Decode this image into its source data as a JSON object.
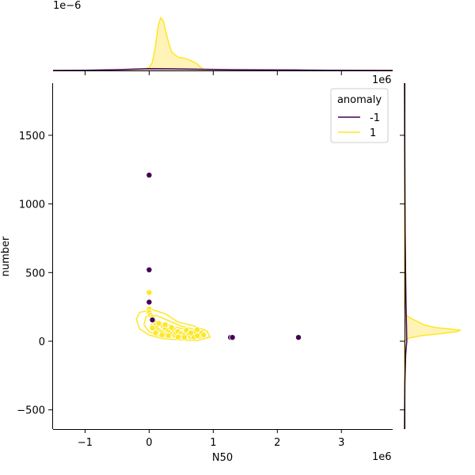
{
  "colors": {
    "anomaly_neg": "#440154",
    "anomaly_pos": "#fde725",
    "anomaly_pos_fill": "#fff3b8"
  },
  "chart_data": {
    "type": "scatter",
    "xlabel": "N50",
    "ylabel": "number",
    "x_offset_label": "1e6",
    "top_offset_label": "1e−6",
    "right_offset_label": "1e6",
    "xlim": [
      -1.5,
      3.8
    ],
    "ylim": [
      -640,
      1880
    ],
    "x_ticks": [
      {
        "value": -1,
        "label": "−1"
      },
      {
        "value": 0,
        "label": "0"
      },
      {
        "value": 1,
        "label": "1"
      },
      {
        "value": 2,
        "label": "2"
      },
      {
        "value": 3,
        "label": "3"
      }
    ],
    "y_ticks": [
      {
        "value": -500,
        "label": "−500"
      },
      {
        "value": 0,
        "label": "0"
      },
      {
        "value": 500,
        "label": "500"
      },
      {
        "value": 1000,
        "label": "1000"
      },
      {
        "value": 1500,
        "label": "1500"
      }
    ],
    "legend": {
      "title": "anomaly",
      "placement": "top-right",
      "entries": [
        {
          "label": "-1",
          "color": "#440154"
        },
        {
          "label": "1",
          "color": "#fde725"
        }
      ]
    },
    "series": [
      {
        "name": "-1",
        "color": "#440154",
        "points": [
          [
            0.0,
            1210
          ],
          [
            0.0,
            520
          ],
          [
            0.0,
            285
          ],
          [
            0.05,
            155
          ],
          [
            1.27,
            28
          ],
          [
            1.3,
            28
          ],
          [
            2.33,
            28
          ]
        ]
      },
      {
        "name": "1",
        "color": "#fde725",
        "points": [
          [
            0.0,
            355
          ],
          [
            0.0,
            235
          ],
          [
            0.0,
            210
          ],
          [
            0.02,
            190
          ],
          [
            0.05,
            175
          ],
          [
            0.08,
            140
          ],
          [
            0.1,
            115
          ],
          [
            0.12,
            95
          ],
          [
            0.15,
            80
          ],
          [
            0.18,
            70
          ],
          [
            0.2,
            60
          ],
          [
            0.22,
            110
          ],
          [
            0.25,
            95
          ],
          [
            0.28,
            55
          ],
          [
            0.3,
            75
          ],
          [
            0.33,
            65
          ],
          [
            0.35,
            50
          ],
          [
            0.38,
            85
          ],
          [
            0.4,
            45
          ],
          [
            0.42,
            60
          ],
          [
            0.45,
            70
          ],
          [
            0.48,
            40
          ],
          [
            0.5,
            55
          ],
          [
            0.52,
            35
          ],
          [
            0.55,
            45
          ],
          [
            0.58,
            80
          ],
          [
            0.6,
            38
          ],
          [
            0.62,
            50
          ],
          [
            0.65,
            32
          ],
          [
            0.68,
            42
          ],
          [
            0.7,
            30
          ],
          [
            0.72,
            70
          ],
          [
            0.75,
            85
          ],
          [
            0.78,
            35
          ],
          [
            0.8,
            50
          ],
          [
            0.82,
            60
          ],
          [
            0.85,
            45
          ],
          [
            0.15,
            130
          ],
          [
            0.25,
            120
          ],
          [
            0.1,
            60
          ],
          [
            0.3,
            40
          ],
          [
            0.45,
            30
          ],
          [
            0.55,
            28
          ],
          [
            0.05,
            95
          ],
          [
            0.35,
            100
          ],
          [
            0.65,
            60
          ],
          [
            0.75,
            40
          ],
          [
            0.2,
            45
          ]
        ]
      }
    ],
    "contours": [
      [
        [
          -0.15,
          210
        ],
        [
          0.05,
          230
        ],
        [
          0.25,
          200
        ],
        [
          0.45,
          140
        ],
        [
          0.7,
          110
        ],
        [
          0.9,
          75
        ],
        [
          0.95,
          30
        ],
        [
          0.75,
          5
        ],
        [
          0.45,
          10
        ],
        [
          0.2,
          20
        ],
        [
          0.0,
          45
        ],
        [
          -0.15,
          90
        ],
        [
          -0.2,
          160
        ]
      ],
      [
        [
          -0.05,
          180
        ],
        [
          0.1,
          190
        ],
        [
          0.3,
          150
        ],
        [
          0.5,
          110
        ],
        [
          0.75,
          80
        ],
        [
          0.8,
          45
        ],
        [
          0.6,
          25
        ],
        [
          0.35,
          30
        ],
        [
          0.15,
          40
        ],
        [
          0.0,
          70
        ],
        [
          -0.08,
          120
        ]
      ],
      [
        [
          0.05,
          140
        ],
        [
          0.2,
          135
        ],
        [
          0.4,
          105
        ],
        [
          0.6,
          80
        ],
        [
          0.65,
          55
        ],
        [
          0.45,
          45
        ],
        [
          0.25,
          55
        ],
        [
          0.1,
          75
        ],
        [
          0.02,
          105
        ]
      ],
      [
        [
          0.18,
          100
        ],
        [
          0.3,
          95
        ],
        [
          0.45,
          75
        ],
        [
          0.4,
          60
        ],
        [
          0.27,
          65
        ],
        [
          0.17,
          80
        ]
      ]
    ],
    "top_kde_pos": [
      [
        -1.5,
        0.0
      ],
      [
        -0.4,
        0.0
      ],
      [
        -0.1,
        0.02
      ],
      [
        0.0,
        0.05
      ],
      [
        0.05,
        0.15
      ],
      [
        0.1,
        0.45
      ],
      [
        0.14,
        0.8
      ],
      [
        0.18,
        0.95
      ],
      [
        0.22,
        0.9
      ],
      [
        0.28,
        0.6
      ],
      [
        0.35,
        0.33
      ],
      [
        0.45,
        0.24
      ],
      [
        0.55,
        0.22
      ],
      [
        0.65,
        0.18
      ],
      [
        0.75,
        0.12
      ],
      [
        0.8,
        0.06
      ],
      [
        0.85,
        0.02
      ],
      [
        0.95,
        0.0
      ],
      [
        3.8,
        0.0
      ]
    ],
    "top_kde_neg": [
      [
        -1.5,
        0.0
      ],
      [
        -1.0,
        0.005
      ],
      [
        -0.5,
        0.015
      ],
      [
        -0.2,
        0.025
      ],
      [
        0.0,
        0.032
      ],
      [
        0.3,
        0.03
      ],
      [
        0.8,
        0.022
      ],
      [
        1.3,
        0.015
      ],
      [
        1.8,
        0.01
      ],
      [
        2.3,
        0.008
      ],
      [
        2.8,
        0.004
      ],
      [
        3.3,
        0.001
      ],
      [
        3.8,
        0.0
      ]
    ],
    "right_kde_pos": [
      [
        -640,
        0.0
      ],
      [
        0,
        0.0
      ],
      [
        10,
        0.02
      ],
      [
        25,
        0.1
      ],
      [
        40,
        0.3
      ],
      [
        55,
        0.65
      ],
      [
        70,
        0.95
      ],
      [
        80,
        1.0
      ],
      [
        90,
        0.8
      ],
      [
        100,
        0.55
      ],
      [
        120,
        0.35
      ],
      [
        140,
        0.25
      ],
      [
        160,
        0.15
      ],
      [
        180,
        0.06
      ],
      [
        200,
        0.02
      ],
      [
        240,
        0.0
      ],
      [
        1880,
        0.0
      ]
    ],
    "right_kde_neg": [
      [
        -640,
        0.0
      ],
      [
        -300,
        0.005
      ],
      [
        -100,
        0.02
      ],
      [
        0,
        0.04
      ],
      [
        100,
        0.035
      ],
      [
        300,
        0.025
      ],
      [
        500,
        0.018
      ],
      [
        800,
        0.01
      ],
      [
        1200,
        0.006
      ],
      [
        1500,
        0.003
      ],
      [
        1880,
        0.0
      ]
    ]
  }
}
